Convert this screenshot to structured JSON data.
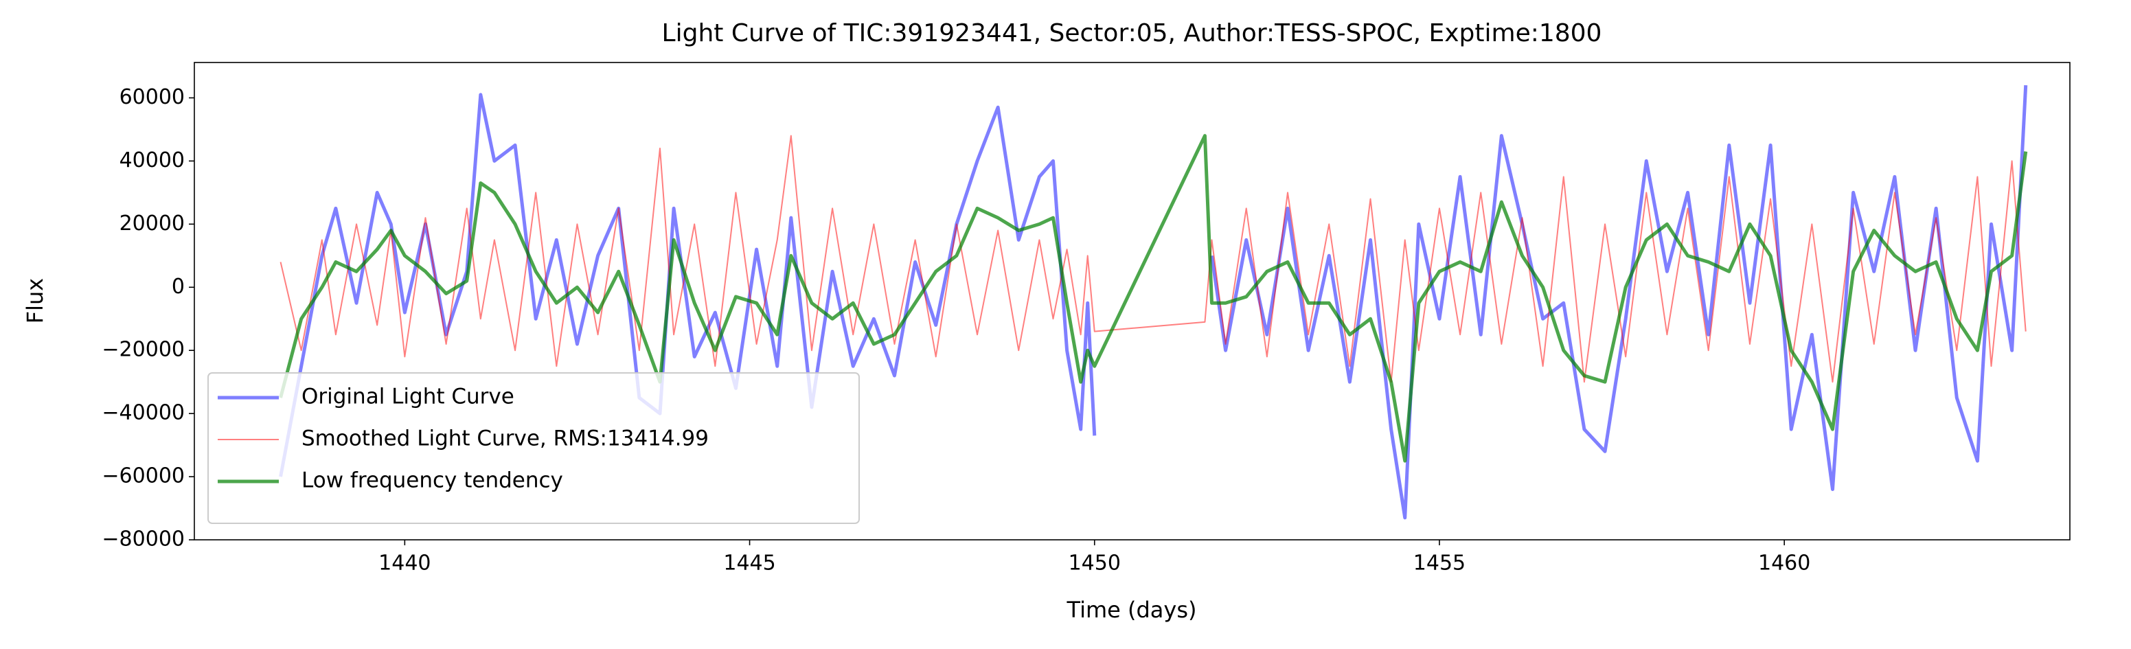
{
  "chart_data": {
    "type": "line",
    "title": "Light Curve of TIC:391923441, Sector:05, Author:TESS-SPOC, Exptime:1800",
    "x_label": "Time (days)",
    "y_label": "Flux",
    "x": [
      1438.2,
      1438.5,
      1438.8,
      1439,
      1439.3,
      1439.6,
      1439.8,
      1440,
      1440.3,
      1440.6,
      1440.9,
      1441.1,
      1441.3,
      1441.6,
      1441.9,
      1442.2,
      1442.5,
      1442.8,
      1443.1,
      1443.4,
      1443.7,
      1443.9,
      1444.2,
      1444.5,
      1444.8,
      1445.1,
      1445.4,
      1445.6,
      1445.9,
      1446.2,
      1446.5,
      1446.8,
      1447.1,
      1447.4,
      1447.7,
      1448,
      1448.3,
      1448.6,
      1448.9,
      1449.2,
      1449.4,
      1449.6,
      1449.8,
      1449.9,
      1450,
      1451.6,
      1451.7,
      1451.9,
      1452.2,
      1452.5,
      1452.8,
      1453.1,
      1453.4,
      1453.7,
      1454,
      1454.3,
      1454.5,
      1454.7,
      1455,
      1455.3,
      1455.6,
      1455.9,
      1456.2,
      1456.5,
      1456.8,
      1457.1,
      1457.4,
      1457.7,
      1458,
      1458.3,
      1458.6,
      1458.9,
      1459.2,
      1459.5,
      1459.8,
      1460.1,
      1460.4,
      1460.7,
      1461,
      1461.3,
      1461.6,
      1461.9,
      1462.2,
      1462.5,
      1462.8,
      1463,
      1463.3,
      1463.5
    ],
    "series": [
      {
        "name": "Original Light Curve",
        "color": "#0000ff",
        "alpha": 0.5,
        "values": [
          -60000,
          -25000,
          10000,
          25000,
          -5000,
          30000,
          20000,
          -8000,
          20000,
          -15000,
          5000,
          61000,
          40000,
          45000,
          -10000,
          15000,
          -18000,
          10000,
          25000,
          -35000,
          -40000,
          25000,
          -22000,
          -8000,
          -32000,
          12000,
          -25000,
          22000,
          -38000,
          5000,
          -25000,
          -10000,
          -28000,
          8000,
          -12000,
          20000,
          40000,
          57000,
          15000,
          35000,
          40000,
          -20000,
          -45000,
          -5000,
          -47000,
          null,
          10000,
          -20000,
          15000,
          -15000,
          25000,
          -20000,
          10000,
          -30000,
          15000,
          -45000,
          -73000,
          20000,
          -10000,
          35000,
          -15000,
          48000,
          20000,
          -10000,
          -5000,
          -45000,
          -52000,
          -10000,
          40000,
          5000,
          30000,
          -15000,
          45000,
          -5000,
          45000,
          -45000,
          -15000,
          -64000,
          30000,
          5000,
          35000,
          -20000,
          25000,
          -35000,
          -55000,
          20000,
          -20000,
          64000
        ]
      },
      {
        "name": "Smoothed Light Curve, RMS:13414.99",
        "color": "#ff0000",
        "alpha": 0.5,
        "values": [
          8000,
          -20000,
          15000,
          -15000,
          20000,
          -12000,
          18000,
          -22000,
          22000,
          -18000,
          25000,
          -10000,
          15000,
          -20000,
          30000,
          -25000,
          20000,
          -15000,
          25000,
          -20000,
          44000,
          -15000,
          20000,
          -25000,
          30000,
          -18000,
          15000,
          48000,
          -20000,
          25000,
          -15000,
          20000,
          -18000,
          15000,
          -22000,
          20000,
          -15000,
          18000,
          -20000,
          15000,
          -10000,
          12000,
          -15000,
          10000,
          -14000,
          -11000,
          15000,
          -18000,
          25000,
          -22000,
          30000,
          -15000,
          20000,
          -25000,
          28000,
          -30000,
          15000,
          -20000,
          25000,
          -15000,
          30000,
          -18000,
          22000,
          -25000,
          35000,
          -30000,
          20000,
          -22000,
          30000,
          -15000,
          25000,
          -20000,
          35000,
          -18000,
          28000,
          -25000,
          20000,
          -30000,
          25000,
          -18000,
          30000,
          -15000,
          22000,
          -20000,
          35000,
          -25000,
          40000,
          -14000
        ]
      },
      {
        "name": "Low frequency tendency",
        "color": "#008000",
        "alpha": 0.7,
        "values": [
          -35000,
          -10000,
          0,
          8000,
          5000,
          12000,
          18000,
          10000,
          5000,
          -2000,
          2000,
          33000,
          30000,
          20000,
          5000,
          -5000,
          0,
          -8000,
          5000,
          -12000,
          -30000,
          15000,
          -5000,
          -20000,
          -3000,
          -5000,
          -15000,
          10000,
          -5000,
          -10000,
          -5000,
          -18000,
          -15000,
          -5000,
          5000,
          10000,
          25000,
          22000,
          18000,
          20000,
          22000,
          -5000,
          -30000,
          -20000,
          -25000,
          48000,
          -5000,
          -5000,
          -3000,
          5000,
          8000,
          -5000,
          -5000,
          -15000,
          -10000,
          -30000,
          -55000,
          -5000,
          5000,
          8000,
          5000,
          27000,
          10000,
          0,
          -20000,
          -28000,
          -30000,
          0,
          15000,
          20000,
          10000,
          8000,
          5000,
          20000,
          10000,
          -20000,
          -30000,
          -45000,
          5000,
          18000,
          10000,
          5000,
          8000,
          -10000,
          -20000,
          5000,
          10000,
          43000
        ]
      }
    ],
    "xlim": [
      1436.95,
      1464.14
    ],
    "ylim": [
      -80000,
      71200
    ],
    "xticks": [
      1440,
      1445,
      1450,
      1455,
      1460
    ],
    "yticks": [
      {
        "value": -80000,
        "label": "−80000"
      },
      {
        "value": -60000,
        "label": "−60000"
      },
      {
        "value": -40000,
        "label": "−40000"
      },
      {
        "value": -20000,
        "label": "−20000"
      },
      0,
      20000,
      40000,
      60000
    ],
    "legend": "lower left",
    "grid": false
  }
}
